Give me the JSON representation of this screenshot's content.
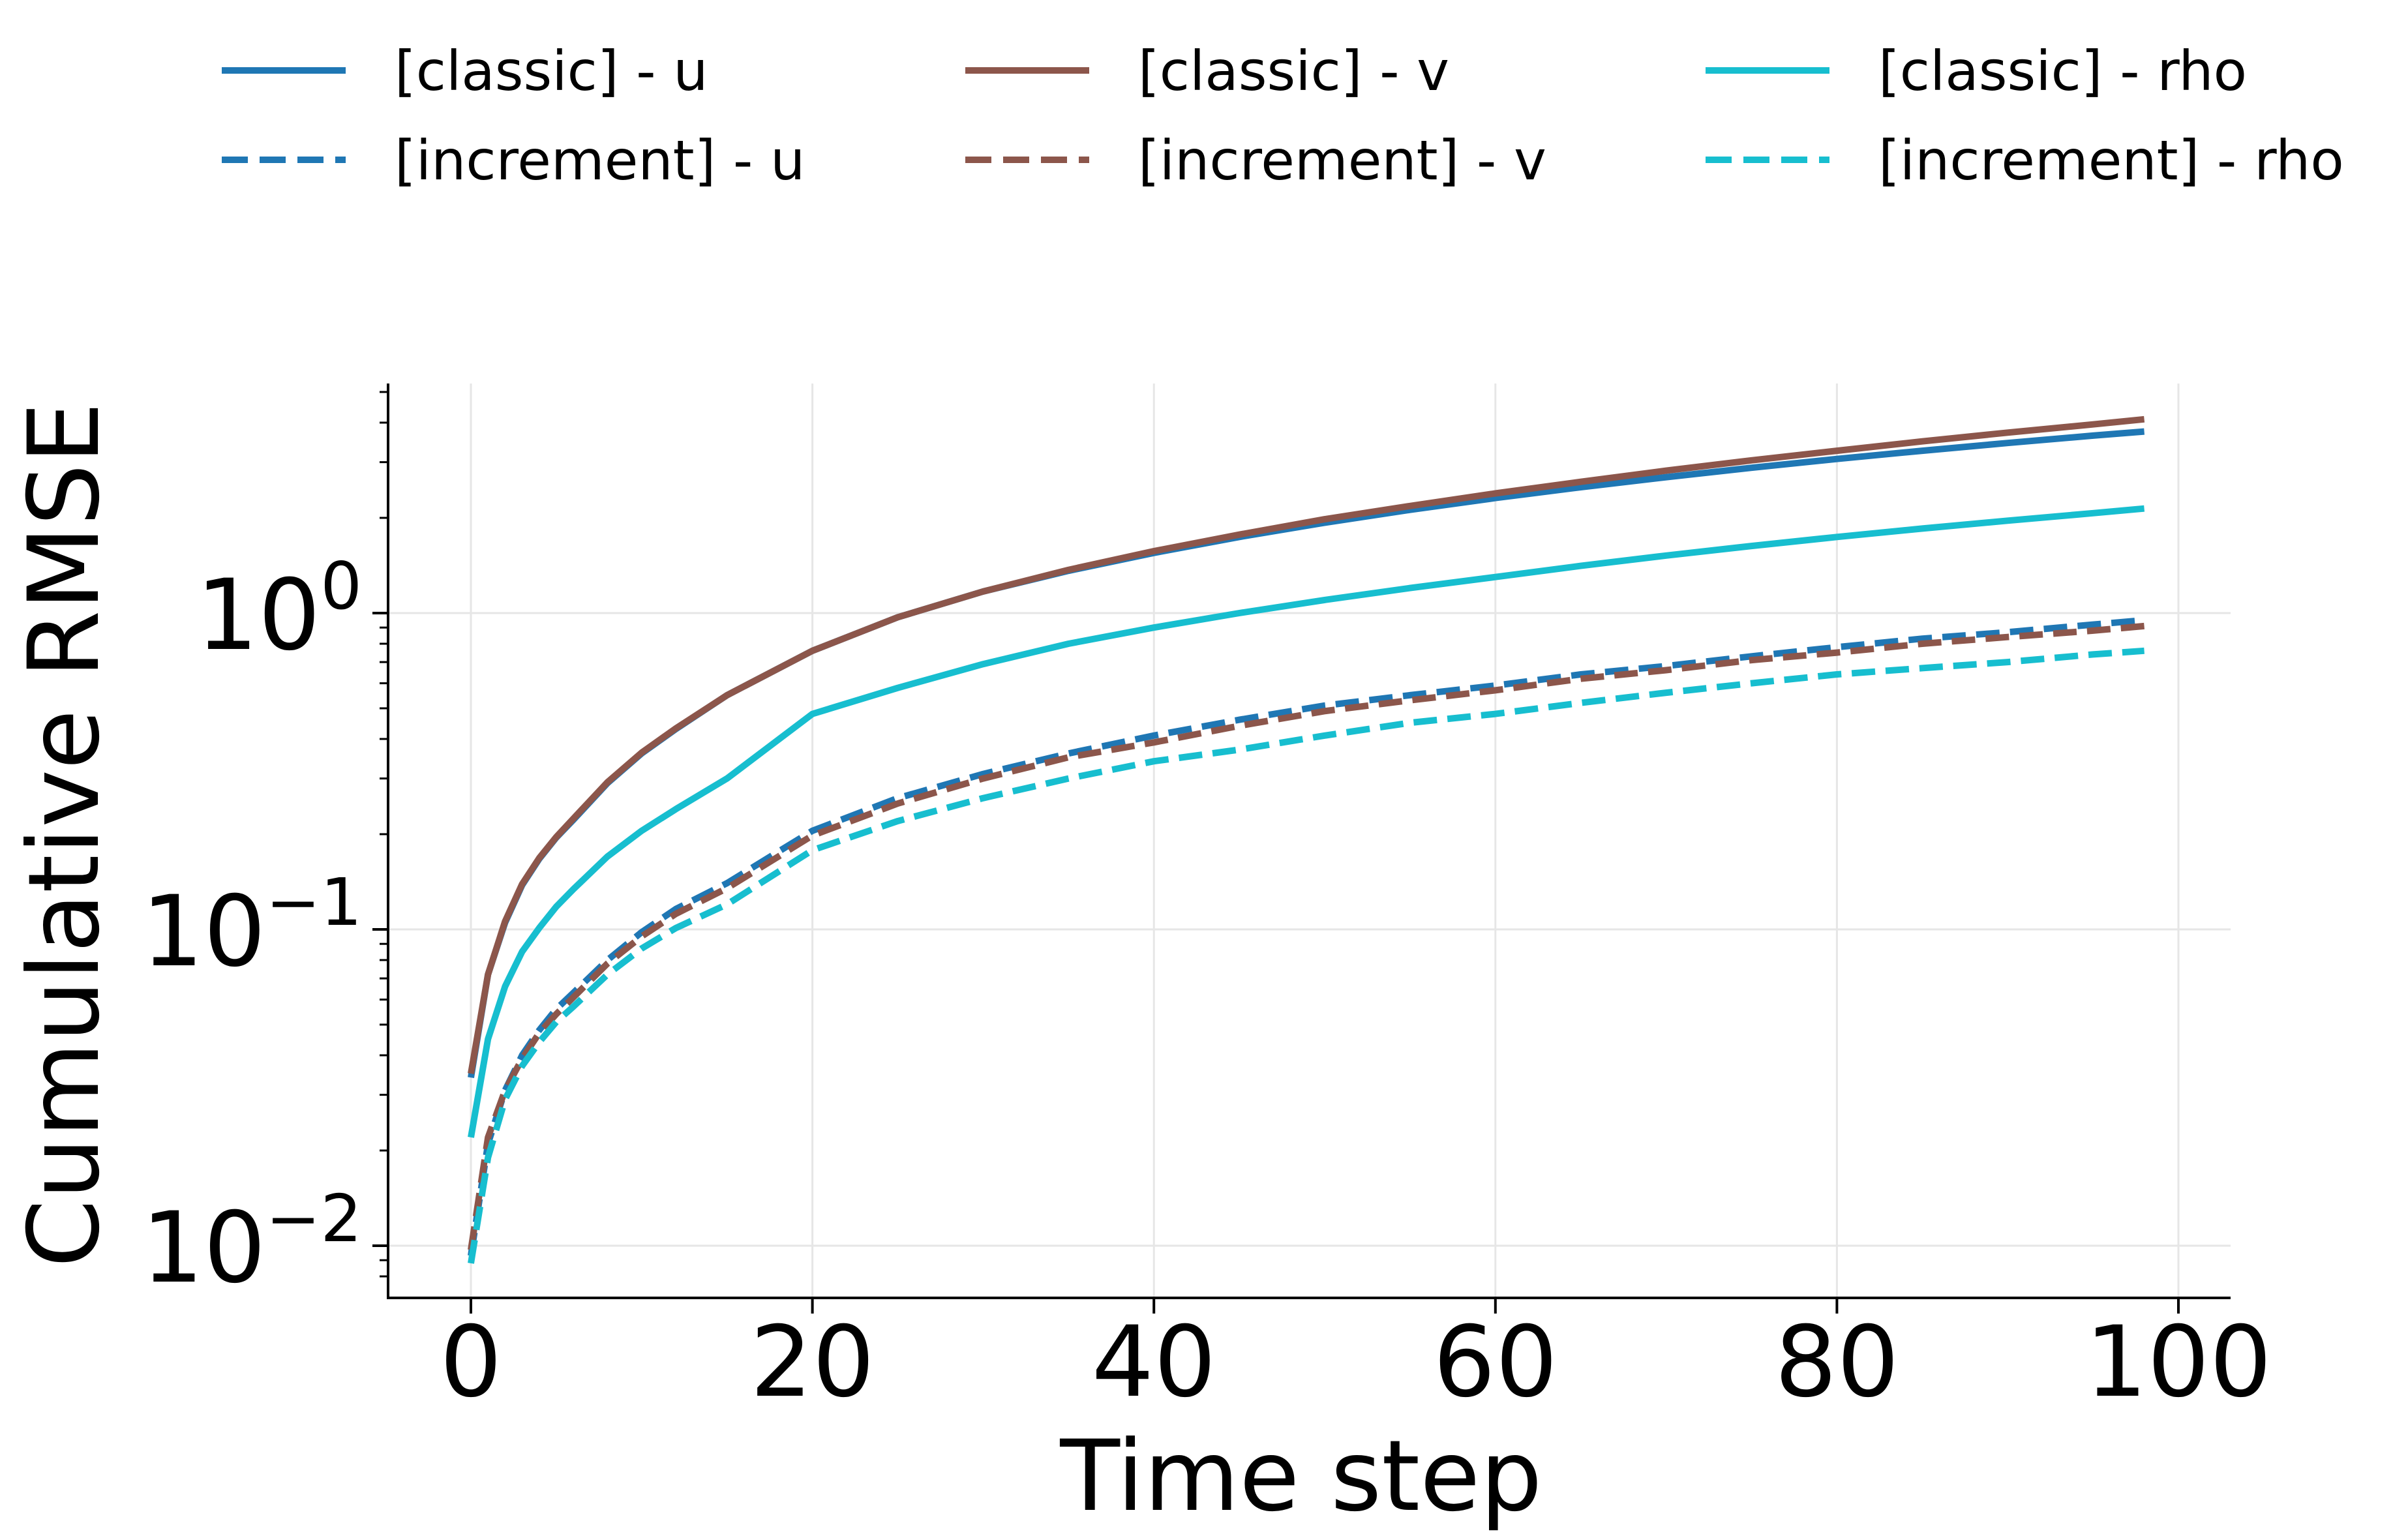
{
  "chart_data": {
    "type": "line",
    "title": "",
    "xlabel": "Time step",
    "ylabel": "Cumulative RMSE",
    "xlim": [
      -5,
      103
    ],
    "ylim": [
      0.0075,
      5.0
    ],
    "yscale": "log",
    "grid": true,
    "legend_position": "top, above plot, 3 columns",
    "x_ticks": [
      0,
      20,
      40,
      60,
      80,
      100
    ],
    "x_tick_labels": [
      "0",
      "20",
      "40",
      "60",
      "80",
      "100"
    ],
    "y_ticks": [
      {
        "value": 0.01,
        "base": "10",
        "exp": "−2"
      },
      {
        "value": 0.1,
        "base": "10",
        "exp": "−1"
      },
      {
        "value": 1,
        "base": "10",
        "exp": "0"
      }
    ],
    "x": [
      0,
      1,
      2,
      3,
      4,
      5,
      6,
      8,
      10,
      12,
      15,
      20,
      25,
      30,
      35,
      40,
      45,
      50,
      55,
      60,
      65,
      70,
      75,
      80,
      85,
      90,
      95,
      98
    ],
    "series": [
      {
        "name": "[classic] - u",
        "color": "#1f77b4",
        "dash": "solid",
        "values": [
          0.034,
          0.072,
          0.105,
          0.138,
          0.167,
          0.195,
          0.222,
          0.29,
          0.36,
          0.43,
          0.55,
          0.76,
          0.97,
          1.17,
          1.36,
          1.55,
          1.74,
          1.93,
          2.12,
          2.31,
          2.5,
          2.69,
          2.88,
          3.07,
          3.26,
          3.45,
          3.64,
          3.75
        ]
      },
      {
        "name": "[classic] - v",
        "color": "#8c564b",
        "dash": "solid",
        "values": [
          0.035,
          0.072,
          0.106,
          0.139,
          0.168,
          0.196,
          0.224,
          0.292,
          0.362,
          0.432,
          0.55,
          0.76,
          0.97,
          1.17,
          1.37,
          1.57,
          1.77,
          1.98,
          2.18,
          2.39,
          2.6,
          2.82,
          3.04,
          3.26,
          3.49,
          3.72,
          3.95,
          4.1
        ]
      },
      {
        "name": "[classic] - rho",
        "color": "#17becf",
        "dash": "solid",
        "values": [
          0.022,
          0.045,
          0.066,
          0.085,
          0.101,
          0.118,
          0.134,
          0.17,
          0.205,
          0.24,
          0.3,
          0.48,
          0.58,
          0.69,
          0.8,
          0.9,
          1.0,
          1.1,
          1.2,
          1.3,
          1.41,
          1.52,
          1.63,
          1.74,
          1.85,
          1.96,
          2.07,
          2.14
        ]
      },
      {
        "name": "[increment] - u",
        "color": "#1f77b4",
        "dash": "dashed",
        "values": [
          0.0093,
          0.021,
          0.031,
          0.04,
          0.048,
          0.056,
          0.063,
          0.08,
          0.098,
          0.116,
          0.14,
          0.205,
          0.26,
          0.31,
          0.36,
          0.41,
          0.46,
          0.51,
          0.55,
          0.59,
          0.64,
          0.68,
          0.73,
          0.78,
          0.83,
          0.87,
          0.92,
          0.95
        ]
      },
      {
        "name": "[increment] - v",
        "color": "#8c564b",
        "dash": "dashed",
        "values": [
          0.0097,
          0.022,
          0.031,
          0.039,
          0.047,
          0.054,
          0.061,
          0.078,
          0.095,
          0.112,
          0.135,
          0.198,
          0.25,
          0.3,
          0.35,
          0.39,
          0.44,
          0.49,
          0.53,
          0.57,
          0.62,
          0.66,
          0.71,
          0.75,
          0.8,
          0.84,
          0.88,
          0.91
        ]
      },
      {
        "name": "[increment] - rho",
        "color": "#17becf",
        "dash": "dashed",
        "values": [
          0.0088,
          0.019,
          0.029,
          0.037,
          0.044,
          0.051,
          0.057,
          0.072,
          0.087,
          0.101,
          0.12,
          0.178,
          0.22,
          0.26,
          0.3,
          0.34,
          0.37,
          0.41,
          0.45,
          0.48,
          0.52,
          0.56,
          0.6,
          0.64,
          0.67,
          0.7,
          0.74,
          0.76
        ]
      }
    ]
  }
}
